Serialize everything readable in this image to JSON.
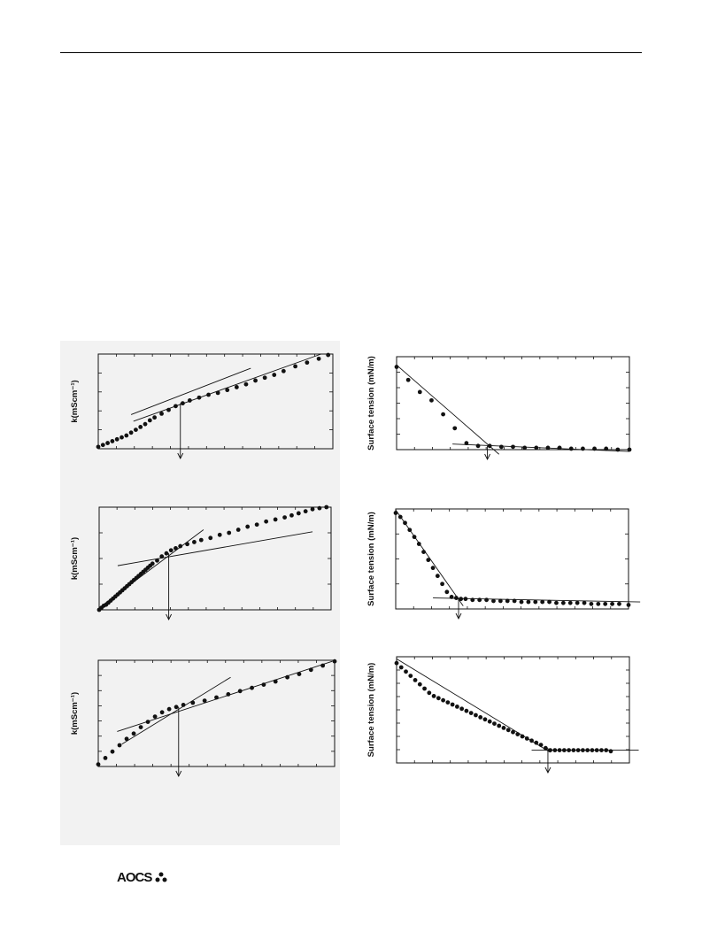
{
  "logo_text": "AOCS",
  "chart_data": [
    {
      "type": "scatter",
      "ylabel": "k(mScm⁻¹)",
      "ylim": [
        0,
        1
      ],
      "xlim": [
        0,
        1
      ],
      "grid": false,
      "x": [
        0.0,
        0.02,
        0.04,
        0.06,
        0.08,
        0.1,
        0.12,
        0.14,
        0.16,
        0.18,
        0.2,
        0.22,
        0.24,
        0.27,
        0.3,
        0.33,
        0.36,
        0.39,
        0.43,
        0.47,
        0.51,
        0.55,
        0.59,
        0.63,
        0.67,
        0.71,
        0.75,
        0.79,
        0.84,
        0.89,
        0.94,
        0.98
      ],
      "y": [
        0.02,
        0.04,
        0.06,
        0.08,
        0.1,
        0.12,
        0.14,
        0.17,
        0.2,
        0.23,
        0.26,
        0.3,
        0.33,
        0.37,
        0.41,
        0.45,
        0.48,
        0.51,
        0.54,
        0.57,
        0.59,
        0.62,
        0.65,
        0.68,
        0.72,
        0.75,
        0.78,
        0.82,
        0.87,
        0.91,
        0.95,
        0.99
      ],
      "fit_lines": [
        [
          [
            0.14,
            0.36
          ],
          [
            0.65,
            0.85
          ]
        ],
        [
          [
            0.15,
            0.29
          ],
          [
            0.95,
            1.0
          ]
        ]
      ],
      "break_x": 0.35
    },
    {
      "type": "scatter",
      "ylabel": "Surface tension (mN/m)",
      "ylim": [
        0,
        1
      ],
      "xlim": [
        0,
        1
      ],
      "grid": false,
      "x": [
        0.0,
        0.05,
        0.1,
        0.15,
        0.2,
        0.25,
        0.3,
        0.35,
        0.4,
        0.45,
        0.5,
        0.55,
        0.6,
        0.65,
        0.7,
        0.75,
        0.8,
        0.85,
        0.9,
        0.95,
        1.0
      ],
      "y": [
        0.89,
        0.75,
        0.62,
        0.53,
        0.38,
        0.23,
        0.07,
        0.04,
        0.04,
        0.03,
        0.03,
        0.02,
        0.02,
        0.02,
        0.02,
        0.01,
        0.01,
        0.01,
        0.01,
        0.0,
        0.0
      ],
      "fit_lines": [
        [
          [
            0.0,
            0.91
          ],
          [
            0.44,
            -0.05
          ]
        ],
        [
          [
            0.24,
            0.06
          ],
          [
            1.0,
            -0.02
          ]
        ]
      ],
      "break_x": 0.39
    },
    {
      "type": "scatter",
      "ylabel": "k(mScm⁻¹)",
      "ylim": [
        0,
        1
      ],
      "xlim": [
        0,
        1
      ],
      "grid": false,
      "x": [
        0.0,
        0.01,
        0.02,
        0.03,
        0.04,
        0.05,
        0.06,
        0.07,
        0.08,
        0.09,
        0.1,
        0.11,
        0.12,
        0.13,
        0.14,
        0.15,
        0.16,
        0.17,
        0.18,
        0.19,
        0.2,
        0.21,
        0.22,
        0.23,
        0.25,
        0.27,
        0.29,
        0.31,
        0.33,
        0.35,
        0.38,
        0.41,
        0.44,
        0.48,
        0.52,
        0.56,
        0.6,
        0.64,
        0.68,
        0.72,
        0.76,
        0.8,
        0.83,
        0.86,
        0.89,
        0.92,
        0.95,
        0.98
      ],
      "y": [
        0.0,
        0.02,
        0.04,
        0.05,
        0.07,
        0.09,
        0.11,
        0.13,
        0.15,
        0.17,
        0.19,
        0.21,
        0.23,
        0.25,
        0.27,
        0.29,
        0.31,
        0.33,
        0.35,
        0.37,
        0.39,
        0.41,
        0.43,
        0.45,
        0.48,
        0.52,
        0.55,
        0.58,
        0.6,
        0.62,
        0.64,
        0.66,
        0.68,
        0.7,
        0.73,
        0.75,
        0.78,
        0.81,
        0.83,
        0.86,
        0.88,
        0.9,
        0.92,
        0.94,
        0.96,
        0.98,
        0.99,
        1.0
      ],
      "fit_lines": [
        [
          [
            0.08,
            0.43
          ],
          [
            0.92,
            0.76
          ]
        ],
        [
          [
            0.0,
            0.02
          ],
          [
            0.45,
            0.78
          ]
        ]
      ],
      "break_x": 0.3
    },
    {
      "type": "scatter",
      "ylabel": "Surface tension (mN/m)",
      "ylim": [
        0,
        1
      ],
      "xlim": [
        0,
        1
      ],
      "grid": false,
      "x": [
        0.0,
        0.02,
        0.04,
        0.06,
        0.08,
        0.1,
        0.12,
        0.14,
        0.16,
        0.18,
        0.2,
        0.22,
        0.24,
        0.26,
        0.28,
        0.3,
        0.33,
        0.36,
        0.39,
        0.42,
        0.45,
        0.48,
        0.51,
        0.54,
        0.57,
        0.6,
        0.63,
        0.66,
        0.69,
        0.72,
        0.75,
        0.78,
        0.81,
        0.84,
        0.87,
        0.9,
        0.93,
        0.96,
        1.0
      ],
      "y": [
        0.96,
        0.92,
        0.86,
        0.79,
        0.72,
        0.65,
        0.57,
        0.49,
        0.41,
        0.33,
        0.25,
        0.17,
        0.12,
        0.11,
        0.1,
        0.1,
        0.09,
        0.09,
        0.09,
        0.08,
        0.08,
        0.08,
        0.08,
        0.07,
        0.07,
        0.07,
        0.07,
        0.07,
        0.06,
        0.06,
        0.06,
        0.06,
        0.06,
        0.05,
        0.05,
        0.05,
        0.05,
        0.05,
        0.04
      ],
      "fit_lines": [
        [
          [
            0.0,
            0.99
          ],
          [
            0.29,
            0.03
          ]
        ],
        [
          [
            0.16,
            0.11
          ],
          [
            1.05,
            0.07
          ]
        ]
      ],
      "break_x": 0.27
    },
    {
      "type": "scatter",
      "ylabel": "k(mScm⁻¹)",
      "ylim": [
        0,
        1
      ],
      "xlim": [
        0,
        1
      ],
      "grid": false,
      "x": [
        0.0,
        0.03,
        0.06,
        0.09,
        0.12,
        0.15,
        0.18,
        0.21,
        0.24,
        0.27,
        0.3,
        0.33,
        0.36,
        0.4,
        0.45,
        0.5,
        0.55,
        0.6,
        0.65,
        0.7,
        0.75,
        0.8,
        0.85,
        0.9,
        0.95,
        1.0
      ],
      "y": [
        0.02,
        0.08,
        0.14,
        0.2,
        0.26,
        0.31,
        0.37,
        0.42,
        0.47,
        0.51,
        0.54,
        0.56,
        0.58,
        0.6,
        0.62,
        0.65,
        0.68,
        0.71,
        0.74,
        0.77,
        0.8,
        0.84,
        0.87,
        0.91,
        0.95,
        0.99
      ],
      "fit_lines": [
        [
          [
            0.08,
            0.33
          ],
          [
            0.99,
            0.99
          ]
        ],
        [
          [
            0.1,
            0.21
          ],
          [
            0.56,
            0.84
          ]
        ]
      ],
      "break_x": 0.34
    },
    {
      "type": "scatter",
      "ylabel": "Surface tension (mN/m)",
      "ylim": [
        0,
        1
      ],
      "xlim": [
        0,
        1
      ],
      "grid": false,
      "x": [
        0.0,
        0.02,
        0.04,
        0.06,
        0.08,
        0.1,
        0.12,
        0.14,
        0.16,
        0.18,
        0.2,
        0.22,
        0.24,
        0.26,
        0.28,
        0.3,
        0.32,
        0.34,
        0.36,
        0.38,
        0.4,
        0.42,
        0.44,
        0.46,
        0.48,
        0.5,
        0.52,
        0.54,
        0.56,
        0.58,
        0.6,
        0.62,
        0.64,
        0.66,
        0.68,
        0.7,
        0.72,
        0.74,
        0.76,
        0.78,
        0.8,
        0.82,
        0.84,
        0.86,
        0.88,
        0.9,
        0.92
      ],
      "y": [
        0.94,
        0.9,
        0.86,
        0.82,
        0.78,
        0.74,
        0.7,
        0.66,
        0.63,
        0.61,
        0.59,
        0.57,
        0.55,
        0.53,
        0.51,
        0.49,
        0.47,
        0.45,
        0.43,
        0.41,
        0.39,
        0.37,
        0.35,
        0.33,
        0.31,
        0.29,
        0.27,
        0.25,
        0.23,
        0.21,
        0.19,
        0.17,
        0.14,
        0.12,
        0.12,
        0.12,
        0.12,
        0.12,
        0.12,
        0.12,
        0.12,
        0.12,
        0.12,
        0.12,
        0.12,
        0.12,
        0.11
      ],
      "fit_lines": [
        [
          [
            0.0,
            0.98
          ],
          [
            0.66,
            0.1
          ]
        ],
        [
          [
            0.58,
            0.12
          ],
          [
            1.04,
            0.12
          ]
        ]
      ],
      "break_x": 0.65
    }
  ]
}
